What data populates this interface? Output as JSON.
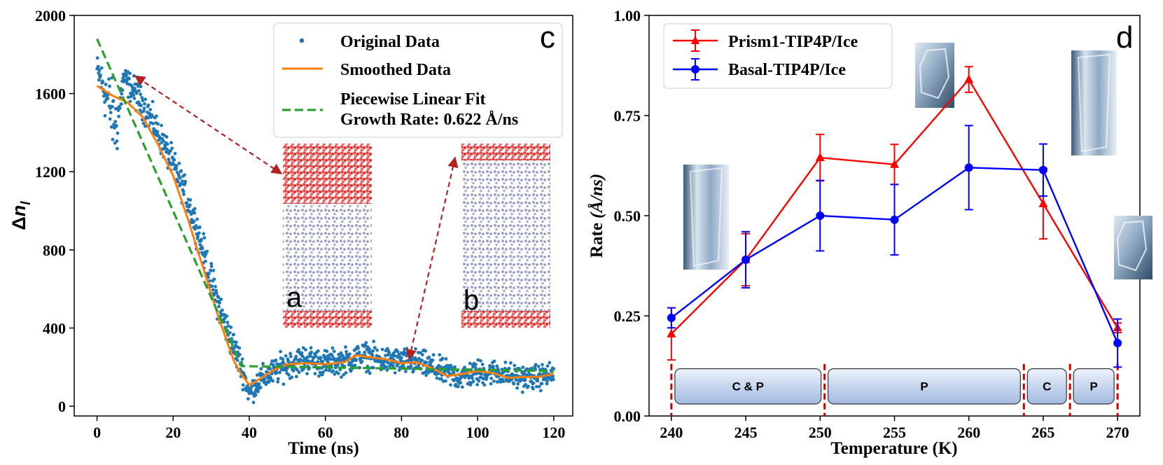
{
  "chart_data": [
    {
      "panel": "c",
      "type": "scatter",
      "xlabel": "Time (ns)",
      "ylabel": "Δn_l",
      "ylabel_base": "Δ",
      "ylabel_italic": "n",
      "ylabel_sub": "l",
      "xlim": [
        -6,
        125
      ],
      "ylim": [
        -50,
        2000
      ],
      "xticks": [
        "0",
        "20",
        "40",
        "60",
        "80",
        "100",
        "120"
      ],
      "xtick_values": [
        0,
        20,
        40,
        60,
        80,
        100,
        120
      ],
      "yticks": [
        "0",
        "400",
        "800",
        "1200",
        "1600",
        "2000"
      ],
      "ytick_values": [
        0,
        400,
        800,
        1200,
        1600,
        2000
      ],
      "colors": {
        "original": "#1f77b4",
        "smoothed": "#ff7f0e",
        "fit": "#2ca02c",
        "arrow": "#b22222"
      },
      "legend": {
        "position": "top-right",
        "entries": [
          "Original Data",
          "Smoothed Data",
          "Piecewise Linear Fit"
        ],
        "fit_note": "Growth Rate: 0.622 Å/ns"
      },
      "series": [
        {
          "name": "Smoothed Data",
          "x": [
            0,
            4,
            8,
            12,
            16,
            20,
            24,
            28,
            32,
            36,
            38,
            40,
            42,
            46,
            50,
            55,
            60,
            65,
            68,
            72,
            76,
            80,
            84,
            88,
            92,
            96,
            100,
            104,
            108,
            112,
            116,
            120
          ],
          "y": [
            1640,
            1590,
            1555,
            1480,
            1340,
            1180,
            950,
            700,
            450,
            230,
            160,
            110,
            130,
            180,
            215,
            220,
            215,
            225,
            260,
            250,
            240,
            220,
            225,
            195,
            155,
            165,
            180,
            170,
            145,
            150,
            150,
            165
          ]
        },
        {
          "name": "Piecewise Linear Fit",
          "x": [
            0,
            38,
            120
          ],
          "y": [
            1880,
            205,
            180
          ]
        }
      ],
      "scatter_envelope": {
        "name": "Original Data",
        "x": [
          0,
          3,
          5,
          7,
          10,
          14,
          18,
          22,
          26,
          30,
          34,
          38,
          40,
          42,
          46,
          50,
          55,
          60,
          65,
          70,
          75,
          80,
          85,
          90,
          95,
          100,
          105,
          110,
          115,
          120
        ],
        "y": [
          1720,
          1560,
          1420,
          1680,
          1600,
          1480,
          1320,
          1150,
          930,
          640,
          400,
          200,
          60,
          120,
          170,
          215,
          240,
          220,
          230,
          260,
          235,
          230,
          220,
          180,
          150,
          170,
          175,
          150,
          145,
          165
        ],
        "spread": [
          70,
          140,
          160,
          60,
          70,
          70,
          70,
          70,
          75,
          80,
          75,
          70,
          50,
          60,
          60,
          65,
          65,
          60,
          60,
          60,
          60,
          60,
          60,
          60,
          60,
          60,
          55,
          55,
          55,
          55
        ]
      },
      "annotations": [
        {
          "label": "a",
          "arrow_to": [
            10,
            1690
          ]
        },
        {
          "label": "b",
          "arrow_to": [
            82,
            240
          ]
        }
      ]
    },
    {
      "panel": "d",
      "type": "line",
      "xlabel": "Temperature (K)",
      "ylabel_base": "Rate ",
      "ylabel_italic": "(Å/ns)",
      "xlim": [
        238.5,
        271.5
      ],
      "ylim": [
        0.0,
        1.0
      ],
      "xticks": [
        "240",
        "245",
        "250",
        "255",
        "260",
        "265",
        "270"
      ],
      "xtick_values": [
        240,
        245,
        250,
        255,
        260,
        265,
        270
      ],
      "yticks": [
        "0.00",
        "0.25",
        "0.50",
        "0.75",
        "1.00"
      ],
      "ytick_values": [
        0.0,
        0.25,
        0.5,
        0.75,
        1.0
      ],
      "legend": {
        "position": "top-left"
      },
      "series": [
        {
          "name": "Prism1-TIP4P/Ice",
          "color": "#ff0000",
          "marker": "triangle",
          "x": [
            240,
            245,
            250,
            255,
            260,
            265,
            270
          ],
          "y": [
            0.205,
            0.39,
            0.645,
            0.628,
            0.84,
            0.53,
            0.22
          ],
          "yerr": [
            0.065,
            0.065,
            0.058,
            0.05,
            0.032,
            0.088,
            0.012
          ]
        },
        {
          "name": "Basal-TIP4P/Ice",
          "color": "#0000ff",
          "marker": "circle",
          "x": [
            240,
            245,
            250,
            255,
            260,
            265,
            270
          ],
          "y": [
            0.245,
            0.39,
            0.5,
            0.49,
            0.62,
            0.614,
            0.182
          ],
          "yerr": [
            0.025,
            0.07,
            0.088,
            0.088,
            0.105,
            0.065,
            0.06
          ]
        }
      ],
      "regions": [
        {
          "label": "C & P",
          "x_range": [
            240,
            250.3
          ]
        },
        {
          "label": "P",
          "x_range": [
            250.3,
            263.7
          ]
        },
        {
          "label": "C",
          "x_range": [
            263.7,
            266.8
          ]
        },
        {
          "label": "P",
          "x_range": [
            266.8,
            270
          ]
        }
      ],
      "boundary_color": "#cc0000"
    }
  ]
}
